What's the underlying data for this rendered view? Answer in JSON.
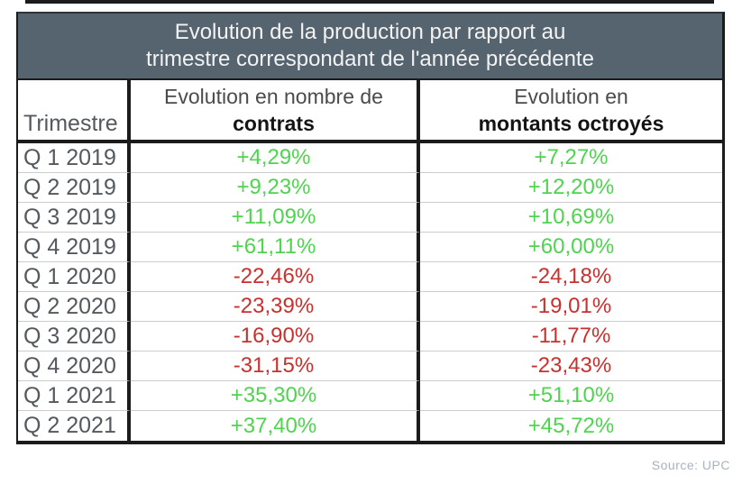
{
  "title": {
    "line1": "Evolution de la production par rapport au",
    "line2": "trimestre correspondant de l'année précédente"
  },
  "columns": {
    "quarter": {
      "label": "Trimestre"
    },
    "contracts": {
      "line1": "Evolution en nombre de",
      "line2": "contrats"
    },
    "amounts": {
      "line1": "Evolution en",
      "line2": "montants octroyés"
    }
  },
  "rows": [
    {
      "quarter": "Q 1 2019",
      "contracts": "+4,29%",
      "amounts": "+7,27%"
    },
    {
      "quarter": "Q 2 2019",
      "contracts": "+9,23%",
      "amounts": "+12,20%"
    },
    {
      "quarter": "Q 3 2019",
      "contracts": "+11,09%",
      "amounts": "+10,69%"
    },
    {
      "quarter": "Q 4 2019",
      "contracts": "+61,11%",
      "amounts": "+60,00%"
    },
    {
      "quarter": "Q 1 2020",
      "contracts": "-22,46%",
      "amounts": "-24,18%"
    },
    {
      "quarter": "Q 2 2020",
      "contracts": "-23,39%",
      "amounts": "-19,01%"
    },
    {
      "quarter": "Q 3 2020",
      "contracts": "-16,90%",
      "amounts": "-11,77%"
    },
    {
      "quarter": "Q 4 2020",
      "contracts": "-31,15%",
      "amounts": "-23,43%"
    },
    {
      "quarter": "Q 1 2021",
      "contracts": "+35,30%",
      "amounts": "+51,10%"
    },
    {
      "quarter": "Q 2 2021",
      "contracts": "+37,40%",
      "amounts": "+45,72%"
    }
  ],
  "source": "Source: UPC",
  "colors": {
    "banner_bg": "#56646f",
    "banner_text": "#f3f3f3",
    "positive": "#4ed44e",
    "negative": "#c8312e",
    "label_text": "#54595e",
    "border": "#1b1b1b",
    "row_separator": "#cccccc",
    "source_text": "#a7b3bf"
  },
  "chart_data": {
    "type": "table",
    "title": "Evolution de la production par rapport au trimestre correspondant de l'année précédente",
    "columns": [
      "Trimestre",
      "Evolution en nombre de contrats (%)",
      "Evolution en montants octroyés (%)"
    ],
    "rows": [
      [
        "Q 1 2019",
        4.29,
        7.27
      ],
      [
        "Q 2 2019",
        9.23,
        12.2
      ],
      [
        "Q 3 2019",
        11.09,
        10.69
      ],
      [
        "Q 4 2019",
        61.11,
        60.0
      ],
      [
        "Q 1 2020",
        -22.46,
        -24.18
      ],
      [
        "Q 2 2020",
        -23.39,
        -19.01
      ],
      [
        "Q 3 2020",
        -16.9,
        -11.77
      ],
      [
        "Q 4 2020",
        -31.15,
        -23.43
      ],
      [
        "Q 1 2021",
        35.3,
        51.1
      ],
      [
        "Q 2 2021",
        37.4,
        45.72
      ]
    ],
    "value_format": "signed percent, comma decimal separator",
    "positive_color": "#4ed44e",
    "negative_color": "#c8312e",
    "source": "Source: UPC"
  }
}
